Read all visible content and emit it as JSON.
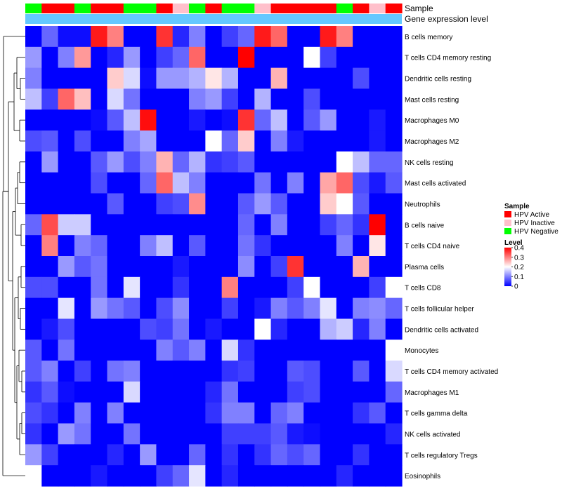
{
  "chart_data": {
    "type": "heatmap",
    "title": "",
    "annotation_tracks": [
      "Sample",
      "Gene expression level"
    ],
    "n_samples": 23,
    "sample_groups": [
      "Negative",
      "Active",
      "Active",
      "Negative",
      "Active",
      "Active",
      "Negative",
      "Negative",
      "Active",
      "Inactive",
      "Negative",
      "Active",
      "Negative",
      "Negative",
      "Inactive",
      "Active",
      "Active",
      "Active",
      "Active",
      "Negative",
      "Active",
      "Inactive",
      "Active"
    ],
    "rows": [
      "B cells memory",
      "T cells CD4 memory resting",
      "Dendritic cells resting",
      "Mast cells resting",
      "Macrophages M0",
      "Macrophages M2",
      "NK cells resting",
      "Mast cells activated",
      "Neutrophils",
      "B cells naive",
      "T cells CD4 naive",
      "Plasma cells",
      "T cells CD8",
      "T cells follicular helper",
      "Dendritic cells activated",
      "Monocytes",
      "T cells CD4 memory activated",
      "Macrophages M1",
      "T cells gamma delta",
      "NK cells activated",
      "T cells regulatory  Tregs",
      "Eosinophils"
    ],
    "values": [
      [
        0.0,
        0.08,
        0.01,
        0.01,
        0.38,
        0.3,
        0.0,
        0.0,
        0.36,
        0.03,
        0.1,
        0.0,
        0.05,
        0.08,
        0.38,
        0.32,
        0.0,
        0.0,
        0.38,
        0.3,
        0.0,
        0.0,
        0.0
      ],
      [
        0.12,
        0.0,
        0.1,
        0.28,
        0.0,
        0.03,
        0.12,
        0.0,
        0.05,
        0.08,
        0.32,
        0.0,
        0.0,
        0.4,
        0.0,
        0.0,
        0.0,
        0.2,
        0.05,
        0.0,
        0.0,
        0.0,
        0.0
      ],
      [
        0.1,
        0.0,
        0.0,
        0.0,
        0.0,
        0.24,
        0.17,
        0.01,
        0.12,
        0.12,
        0.14,
        0.22,
        0.14,
        0.0,
        0.0,
        0.26,
        0.0,
        0.0,
        0.0,
        0.0,
        0.06,
        0.0,
        0.0
      ],
      [
        0.15,
        0.05,
        0.32,
        0.25,
        0.0,
        0.17,
        0.09,
        0.0,
        0.0,
        0.0,
        0.1,
        0.12,
        0.05,
        0.0,
        0.14,
        0.0,
        0.0,
        0.06,
        0.0,
        0.0,
        0.0,
        0.0,
        0.0
      ],
      [
        0.0,
        0.0,
        0.0,
        0.0,
        0.01,
        0.07,
        0.15,
        0.39,
        0.0,
        0.0,
        0.02,
        0.0,
        0.01,
        0.36,
        0.08,
        0.15,
        0.0,
        0.07,
        0.12,
        0.0,
        0.0,
        0.02,
        0.0
      ],
      [
        0.06,
        0.07,
        0.0,
        0.06,
        0.0,
        0.0,
        0.1,
        0.13,
        0.0,
        0.0,
        0.0,
        0.2,
        0.08,
        0.24,
        0.0,
        0.1,
        0.02,
        0.0,
        0.0,
        0.0,
        0.0,
        0.02,
        0.0
      ],
      [
        0.0,
        0.12,
        0.0,
        0.0,
        0.07,
        0.12,
        0.06,
        0.1,
        0.26,
        0.08,
        0.14,
        0.04,
        0.05,
        0.07,
        0.0,
        0.0,
        0.0,
        0.0,
        0.0,
        0.2,
        0.15,
        0.08,
        0.08
      ],
      [
        0.0,
        0.0,
        0.0,
        0.0,
        0.06,
        0.0,
        0.0,
        0.08,
        0.32,
        0.15,
        0.1,
        0.0,
        0.0,
        0.0,
        0.09,
        0.0,
        0.1,
        0.0,
        0.27,
        0.32,
        0.06,
        0.02,
        0.07
      ],
      [
        0.0,
        0.0,
        0.0,
        0.0,
        0.0,
        0.07,
        0.0,
        0.0,
        0.05,
        0.06,
        0.29,
        0.0,
        0.0,
        0.07,
        0.12,
        0.07,
        0.0,
        0.0,
        0.24,
        0.2,
        0.07,
        0.0,
        0.0
      ],
      [
        0.08,
        0.34,
        0.16,
        0.16,
        0.0,
        0.0,
        0.0,
        0.0,
        0.0,
        0.0,
        0.0,
        0.0,
        0.0,
        0.08,
        0.0,
        0.1,
        0.0,
        0.0,
        0.05,
        0.08,
        0.04,
        0.4,
        0.0
      ],
      [
        0.0,
        0.3,
        0.0,
        0.1,
        0.08,
        0.0,
        0.0,
        0.1,
        0.15,
        0.0,
        0.07,
        0.0,
        0.0,
        0.09,
        0.04,
        0.0,
        0.0,
        0.0,
        0.0,
        0.1,
        0.0,
        0.22,
        0.0
      ],
      [
        0.0,
        0.0,
        0.12,
        0.07,
        0.09,
        0.0,
        0.0,
        0.0,
        0.0,
        0.02,
        0.0,
        0.0,
        0.0,
        0.11,
        0.0,
        0.05,
        0.36,
        0.0,
        0.0,
        0.0,
        0.26,
        0.0,
        0.0
      ],
      [
        0.06,
        0.06,
        0.0,
        0.0,
        0.09,
        0.0,
        0.18,
        0.0,
        0.0,
        0.04,
        0.0,
        0.0,
        0.3,
        0.0,
        0.0,
        0.0,
        0.05,
        0.2,
        0.0,
        0.0,
        0.0,
        0.05,
        0.2
      ],
      [
        0.0,
        0.0,
        0.18,
        0.0,
        0.12,
        0.09,
        0.07,
        0.0,
        0.06,
        0.11,
        0.0,
        0.0,
        0.05,
        0.0,
        0.02,
        0.1,
        0.07,
        0.1,
        0.18,
        0.0,
        0.1,
        0.11,
        0.08
      ],
      [
        0.0,
        0.02,
        0.06,
        0.0,
        0.0,
        0.0,
        0.0,
        0.06,
        0.05,
        0.09,
        0.0,
        0.02,
        0.0,
        0.0,
        0.2,
        0.03,
        0.0,
        0.0,
        0.14,
        0.16,
        0.03,
        0.1,
        0.0
      ],
      [
        0.07,
        0.0,
        0.09,
        0.0,
        0.0,
        0.0,
        0.0,
        0.0,
        0.1,
        0.07,
        0.1,
        0.0,
        0.17,
        0.04,
        0.0,
        0.0,
        0.0,
        0.0,
        0.0,
        0.0,
        0.0,
        0.0,
        0.2
      ],
      [
        0.07,
        0.1,
        0.0,
        0.05,
        0.0,
        0.09,
        0.1,
        0.0,
        0.0,
        0.0,
        0.0,
        0.0,
        0.04,
        0.05,
        0.0,
        0.0,
        0.07,
        0.06,
        0.0,
        0.0,
        0.07,
        0.0,
        0.17
      ],
      [
        0.04,
        0.07,
        0.01,
        0.0,
        0.0,
        0.0,
        0.17,
        0.0,
        0.0,
        0.0,
        0.0,
        0.03,
        0.09,
        0.0,
        0.0,
        0.0,
        0.05,
        0.06,
        0.0,
        0.0,
        0.0,
        0.0,
        0.08
      ],
      [
        0.06,
        0.04,
        0.0,
        0.1,
        0.0,
        0.1,
        0.0,
        0.0,
        0.0,
        0.0,
        0.0,
        0.04,
        0.1,
        0.1,
        0.0,
        0.08,
        0.1,
        0.0,
        0.0,
        0.0,
        0.04,
        0.07,
        0.0
      ],
      [
        0.04,
        0.0,
        0.12,
        0.09,
        0.0,
        0.0,
        0.09,
        0.0,
        0.0,
        0.0,
        0.0,
        0.0,
        0.05,
        0.05,
        0.05,
        0.07,
        0.02,
        0.01,
        0.0,
        0.0,
        0.0,
        0.0,
        0.03
      ],
      [
        0.12,
        0.05,
        0.0,
        0.0,
        0.0,
        0.03,
        0.0,
        0.12,
        0.0,
        0.0,
        0.08,
        0.0,
        0.04,
        0.0,
        0.04,
        0.08,
        0.06,
        0.08,
        0.0,
        0.0,
        0.04,
        0.0,
        0.0
      ],
      [
        0.2,
        0.0,
        0.0,
        0.0,
        0.02,
        0.0,
        0.0,
        0.0,
        0.05,
        0.08,
        0.18,
        0.0,
        0.03,
        0.0,
        0.0,
        0.0,
        0.0,
        0.0,
        0.0,
        0.03,
        0.0,
        0.0,
        0.0
      ]
    ],
    "legend": {
      "sample": {
        "title": "Sample",
        "items": [
          {
            "label": "HPV Active",
            "color": "#ff0000"
          },
          {
            "label": "HPV Inactive",
            "color": "#ffc0cb"
          },
          {
            "label": "HPV Negative",
            "color": "#00ff00"
          }
        ]
      },
      "level": {
        "title": "Level",
        "range": [
          0,
          0.4
        ],
        "ticks": [
          0,
          0.1,
          0.2,
          0.3,
          0.4
        ],
        "tick_labels": [
          "0",
          "0.1",
          "0.2",
          "0.3",
          "0.4"
        ],
        "colors": {
          "low": "#0000ff",
          "mid": "#ffffff",
          "high": "#ff0000"
        }
      }
    },
    "expression_track_color": "#64c8ff",
    "row_dendrogram": true,
    "legend_position": "right"
  }
}
